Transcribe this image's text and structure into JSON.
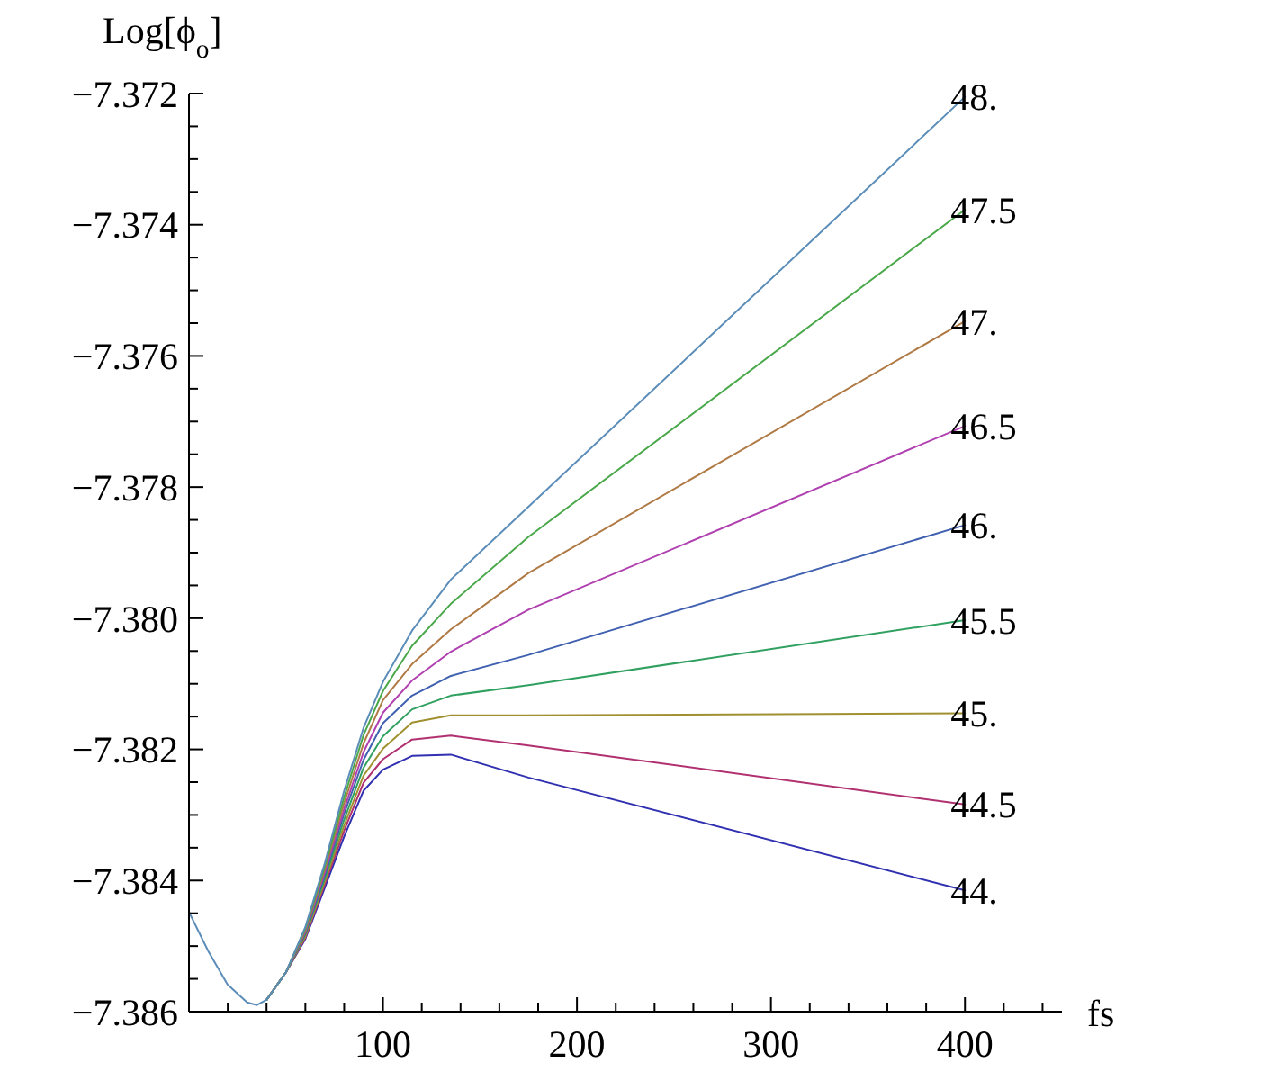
{
  "chart_data": {
    "type": "line",
    "xlabel": "fs",
    "ylabel": "Log[ϕ$_{o}$]",
    "xlim": [
      0,
      450
    ],
    "ylim": [
      -7.386,
      -7.372
    ],
    "xticks": [
      {
        "value": 20,
        "label": null
      },
      {
        "value": 40,
        "label": null
      },
      {
        "value": 60,
        "label": null
      },
      {
        "value": 80,
        "label": null
      },
      100,
      {
        "value": 120,
        "label": null
      },
      {
        "value": 140,
        "label": null
      },
      {
        "value": 160,
        "label": null
      },
      {
        "value": 180,
        "label": null
      },
      200,
      {
        "value": 220,
        "label": null
      },
      {
        "value": 240,
        "label": null
      },
      {
        "value": 260,
        "label": null
      },
      {
        "value": 280,
        "label": null
      },
      300,
      {
        "value": 320,
        "label": null
      },
      {
        "value": 340,
        "label": null
      },
      {
        "value": 360,
        "label": null
      },
      {
        "value": 380,
        "label": null
      },
      400,
      {
        "value": 420,
        "label": null
      },
      {
        "value": 440,
        "label": null
      }
    ],
    "yticks": [
      {
        "value": -7.386,
        "label": "−7.386"
      },
      {
        "value": -7.3855,
        "label": null
      },
      {
        "value": -7.385,
        "label": null
      },
      {
        "value": -7.3845,
        "label": null
      },
      {
        "value": -7.384,
        "label": "−7.384"
      },
      {
        "value": -7.3835,
        "label": null
      },
      {
        "value": -7.383,
        "label": null
      },
      {
        "value": -7.3825,
        "label": null
      },
      {
        "value": -7.382,
        "label": "−7.382"
      },
      {
        "value": -7.3815,
        "label": null
      },
      {
        "value": -7.381,
        "label": null
      },
      {
        "value": -7.3805,
        "label": null
      },
      {
        "value": -7.38,
        "label": "−7.380"
      },
      {
        "value": -7.3795,
        "label": null
      },
      {
        "value": -7.379,
        "label": null
      },
      {
        "value": -7.3785,
        "label": null
      },
      {
        "value": -7.378,
        "label": "−7.378"
      },
      {
        "value": -7.3775,
        "label": null
      },
      {
        "value": -7.377,
        "label": null
      },
      {
        "value": -7.3765,
        "label": null
      },
      {
        "value": -7.376,
        "label": "−7.376"
      },
      {
        "value": -7.3755,
        "label": null
      },
      {
        "value": -7.375,
        "label": null
      },
      {
        "value": -7.3745,
        "label": null
      },
      {
        "value": -7.374,
        "label": "−7.374"
      },
      {
        "value": -7.3735,
        "label": null
      },
      {
        "value": -7.373,
        "label": null
      },
      {
        "value": -7.3725,
        "label": null
      },
      {
        "value": -7.372,
        "label": "−7.372"
      }
    ],
    "grid": false,
    "marker": "none",
    "line_style": "solid",
    "x": [
      0,
      10,
      20,
      30,
      35,
      40,
      50,
      60,
      70,
      80,
      90,
      100,
      115,
      135,
      175,
      400
    ],
    "series": [
      {
        "name": "48.",
        "color": "#5b8db8",
        "values": [
          -7.38448,
          -7.38508,
          -7.38559,
          -7.38586,
          -7.3859,
          -7.38582,
          -7.3854,
          -7.38471,
          -7.38374,
          -7.38263,
          -7.38167,
          -7.38097,
          -7.38019,
          -7.37941,
          -7.3783,
          -7.37205
        ]
      },
      {
        "name": "47.5",
        "color": "#4aa84a",
        "values": [
          null,
          null,
          null,
          null,
          null,
          -7.38582,
          -7.3854,
          -7.38473,
          -7.38379,
          -7.38273,
          -7.38178,
          -7.38111,
          -7.38042,
          -7.37978,
          -7.37876,
          -7.37377
        ]
      },
      {
        "name": "47.",
        "color": "#b07a45",
        "values": [
          null,
          null,
          null,
          null,
          null,
          -7.38582,
          -7.3854,
          -7.38476,
          -7.38383,
          -7.38282,
          -7.38191,
          -7.38125,
          -7.3807,
          -7.38017,
          -7.37931,
          -7.37547
        ]
      },
      {
        "name": "46.5",
        "color": "#b040b0",
        "values": [
          null,
          null,
          null,
          null,
          null,
          -7.38582,
          -7.3854,
          -7.38478,
          -7.38388,
          -7.38291,
          -7.38204,
          -7.38144,
          -7.38095,
          -7.38051,
          -7.37987,
          -7.37707
        ]
      },
      {
        "name": "46.",
        "color": "#4060b0",
        "values": [
          null,
          null,
          null,
          null,
          null,
          -7.38582,
          -7.3854,
          -7.3848,
          -7.38392,
          -7.38298,
          -7.38216,
          -7.3816,
          -7.38118,
          -7.38088,
          -7.38056,
          -7.37858
        ]
      },
      {
        "name": "45.5",
        "color": "#30a060",
        "values": [
          null,
          null,
          null,
          null,
          null,
          -7.38582,
          -7.3854,
          -7.38482,
          -7.38397,
          -7.38307,
          -7.38228,
          -7.3818,
          -7.38139,
          -7.38118,
          -7.38102,
          -7.38003
        ]
      },
      {
        "name": "45.",
        "color": "#a09030",
        "values": [
          null,
          null,
          null,
          null,
          null,
          -7.38582,
          -7.3854,
          -7.38485,
          -7.38402,
          -7.38316,
          -7.3824,
          -7.38199,
          -7.38159,
          -7.38148,
          -7.38148,
          -7.38145
        ]
      },
      {
        "name": "44.5",
        "color": "#b03070",
        "values": [
          null,
          null,
          null,
          null,
          null,
          -7.38582,
          -7.3854,
          -7.38487,
          -7.38406,
          -7.38324,
          -7.38251,
          -7.38215,
          -7.38185,
          -7.38179,
          -7.38194,
          -7.38284
        ]
      },
      {
        "name": "44.",
        "color": "#3030b0",
        "values": [
          null,
          null,
          null,
          null,
          null,
          -7.38582,
          -7.3854,
          -7.38489,
          -7.38411,
          -7.38333,
          -7.38263,
          -7.38231,
          -7.3821,
          -7.38208,
          -7.38243,
          -7.38415
        ]
      }
    ]
  }
}
